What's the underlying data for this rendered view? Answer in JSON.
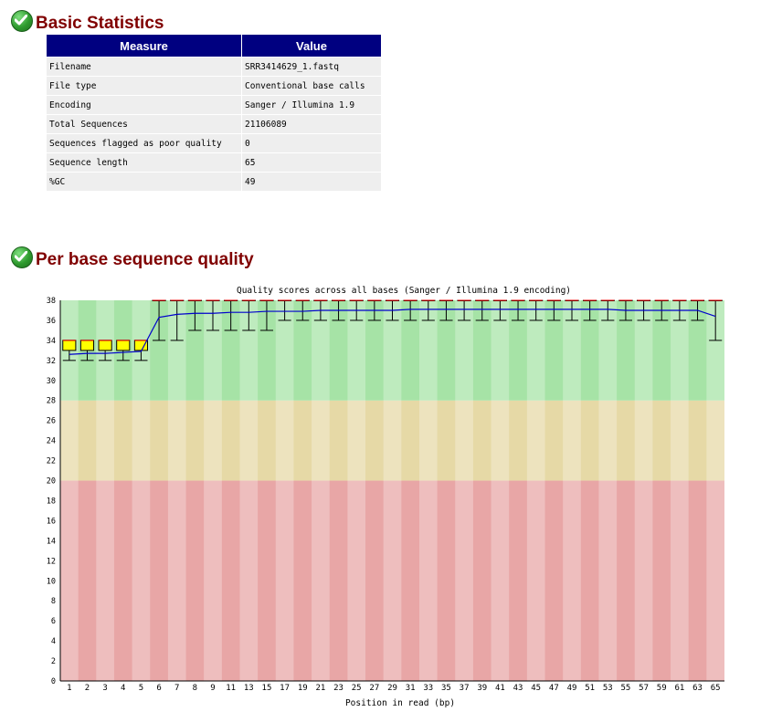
{
  "section1": {
    "title": "Basic Statistics"
  },
  "stats_table": {
    "headers": [
      "Measure",
      "Value"
    ],
    "rows": [
      [
        "Filename",
        "SRR3414629_1.fastq"
      ],
      [
        "File type",
        "Conventional base calls"
      ],
      [
        "Encoding",
        "Sanger / Illumina 1.9"
      ],
      [
        "Total Sequences",
        "21106089"
      ],
      [
        "Sequences flagged as poor quality",
        "0"
      ],
      [
        "Sequence length",
        "65"
      ],
      [
        "%GC",
        "49"
      ]
    ]
  },
  "section2": {
    "title": "Per base sequence quality"
  },
  "colors": {
    "good": "#a6e3a6",
    "warn": "#e6d9a6",
    "bad": "#e8a6a6",
    "mean_line": "#0000cc",
    "box": "#ffff00",
    "header_bg": "#000080",
    "title": "#800000"
  },
  "chart_data": {
    "type": "box",
    "title": "Quality scores across all bases (Sanger / Illumina 1.9 encoding)",
    "xlabel": "Position in read (bp)",
    "ylabel": "",
    "ylim": [
      0,
      38
    ],
    "yticks": [
      0,
      2,
      4,
      6,
      8,
      10,
      12,
      14,
      16,
      18,
      20,
      22,
      24,
      26,
      28,
      30,
      32,
      34,
      36,
      38
    ],
    "xticklabels": [
      "1",
      "2",
      "3",
      "4",
      "5",
      "6",
      "7",
      "8",
      "9",
      "11",
      "13",
      "15",
      "17",
      "19",
      "21",
      "23",
      "25",
      "27",
      "29",
      "31",
      "33",
      "35",
      "37",
      "39",
      "41",
      "43",
      "45",
      "47",
      "49",
      "51",
      "53",
      "55",
      "57",
      "59",
      "61",
      "63",
      "65"
    ],
    "bands": [
      {
        "zone": "bad",
        "from": 0,
        "to": 20
      },
      {
        "zone": "warn",
        "from": 20,
        "to": 28
      },
      {
        "zone": "good",
        "from": 28,
        "to": 38
      }
    ],
    "positions": [
      "1",
      "2",
      "3",
      "4",
      "5",
      "6",
      "7",
      "8",
      "9",
      "10-11",
      "12-13",
      "14-15",
      "16-17",
      "18-19",
      "20-21",
      "22-23",
      "24-25",
      "26-27",
      "28-29",
      "30-31",
      "32-33",
      "34-35",
      "36-37",
      "38-39",
      "40-41",
      "42-43",
      "44-45",
      "46-47",
      "48-49",
      "50-51",
      "52-53",
      "54-55",
      "56-57",
      "58-59",
      "60-61",
      "62-63",
      "64-65"
    ],
    "mean": [
      32.6,
      32.7,
      32.7,
      32.8,
      32.9,
      36.3,
      36.6,
      36.7,
      36.7,
      36.8,
      36.8,
      36.9,
      36.9,
      36.9,
      37.0,
      37.0,
      37.0,
      37.0,
      37.0,
      37.1,
      37.1,
      37.1,
      37.1,
      37.1,
      37.1,
      37.1,
      37.1,
      37.1,
      37.1,
      37.1,
      37.1,
      37.0,
      37.0,
      37.0,
      37.0,
      37.0,
      36.4
    ],
    "median": [
      34,
      34,
      34,
      34,
      34,
      38,
      38,
      38,
      38,
      38,
      38,
      38,
      38,
      38,
      38,
      38,
      38,
      38,
      38,
      38,
      38,
      38,
      38,
      38,
      38,
      38,
      38,
      38,
      38,
      38,
      38,
      38,
      38,
      38,
      38,
      38,
      38
    ],
    "q1": [
      33,
      33,
      33,
      33,
      33,
      38,
      38,
      38,
      38,
      38,
      38,
      38,
      38,
      38,
      38,
      38,
      38,
      38,
      38,
      38,
      38,
      38,
      38,
      38,
      38,
      38,
      38,
      38,
      38,
      38,
      38,
      38,
      38,
      38,
      38,
      38,
      38
    ],
    "q3": [
      34,
      34,
      34,
      34,
      34,
      38,
      38,
      38,
      38,
      38,
      38,
      38,
      38,
      38,
      38,
      38,
      38,
      38,
      38,
      38,
      38,
      38,
      38,
      38,
      38,
      38,
      38,
      38,
      38,
      38,
      38,
      38,
      38,
      38,
      38,
      38,
      38
    ],
    "lower_whisker": [
      32,
      32,
      32,
      32,
      32,
      34,
      34,
      35,
      35,
      35,
      35,
      35,
      36,
      36,
      36,
      36,
      36,
      36,
      36,
      36,
      36,
      36,
      36,
      36,
      36,
      36,
      36,
      36,
      36,
      36,
      36,
      36,
      36,
      36,
      36,
      36,
      34
    ],
    "upper_whisker": [
      34,
      34,
      34,
      34,
      34,
      38,
      38,
      38,
      38,
      38,
      38,
      38,
      38,
      38,
      38,
      38,
      38,
      38,
      38,
      38,
      38,
      38,
      38,
      38,
      38,
      38,
      38,
      38,
      38,
      38,
      38,
      38,
      38,
      38,
      38,
      38,
      38
    ]
  }
}
